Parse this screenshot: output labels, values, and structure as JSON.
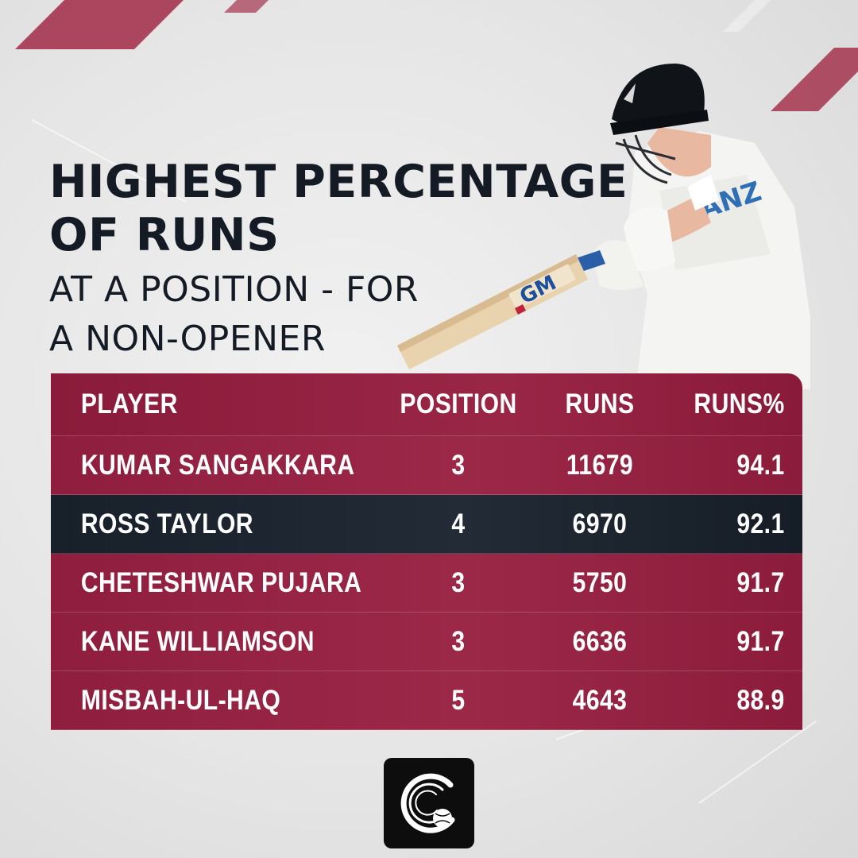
{
  "heading": {
    "title_line1": "HIGHEST PERCENTAGE",
    "title_line2": "OF RUNS",
    "subtitle_line1": "AT A POSITION - FOR",
    "subtitle_line2": "A NON-OPENER"
  },
  "colors": {
    "accent": "#9c2848",
    "dark_row": "#1c242e",
    "title_text": "#141b24",
    "background": "#e6e6e6"
  },
  "player_art": {
    "bat_brand": "GM",
    "icon": "cricket-batsman-illustration"
  },
  "logo": {
    "icon": "cricket-ball-logo-icon"
  },
  "chart_data": {
    "type": "table",
    "columns": [
      "PLAYER",
      "POSITION",
      "RUNS",
      "RUNS%"
    ],
    "rows": [
      {
        "player": "KUMAR SANGAKKARA",
        "position": "3",
        "runs": "11679",
        "runs_pct": "94.1",
        "highlight": false
      },
      {
        "player": "ROSS TAYLOR",
        "position": "4",
        "runs": "6970",
        "runs_pct": "92.1",
        "highlight": true
      },
      {
        "player": "CHETESHWAR PUJARA",
        "position": "3",
        "runs": "5750",
        "runs_pct": "91.7",
        "highlight": false
      },
      {
        "player": "KANE WILLIAMSON",
        "position": "3",
        "runs": "6636",
        "runs_pct": "91.7",
        "highlight": false
      },
      {
        "player": "MISBAH-UL-HAQ",
        "position": "5",
        "runs": "4643",
        "runs_pct": "88.9",
        "highlight": false
      }
    ]
  }
}
